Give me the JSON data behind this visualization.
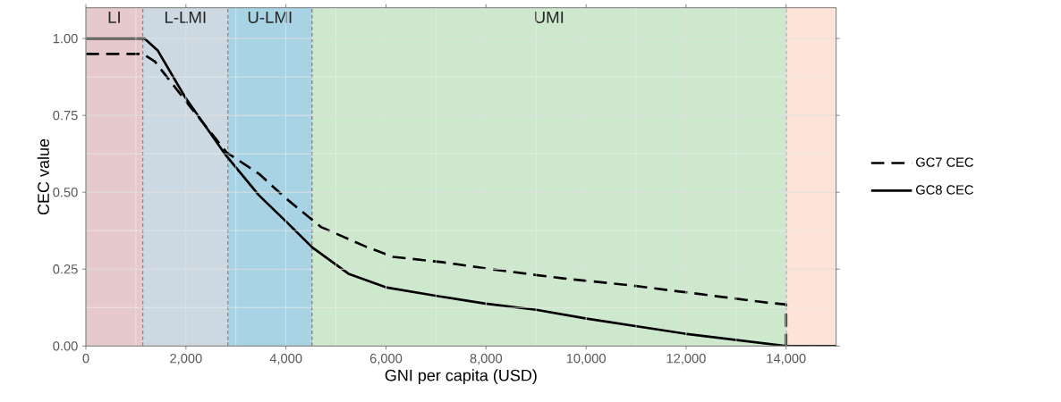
{
  "chart_data": {
    "type": "line",
    "xlabel": "GNI per capita (USD)",
    "ylabel": "CEC value",
    "xlim": [
      0,
      15000
    ],
    "ylim": [
      0,
      1.1
    ],
    "xticks": [
      0,
      {
        "value": 2000,
        "label": "2,000"
      },
      {
        "value": 4000,
        "label": "4,000"
      },
      {
        "value": 6000,
        "label": "6,000"
      },
      {
        "value": 8000,
        "label": "8,000"
      },
      {
        "value": 10000,
        "label": "10,000"
      },
      {
        "value": 12000,
        "label": "12,000"
      },
      {
        "value": 14000,
        "label": "14,000"
      }
    ],
    "yticks": [
      {
        "value": 0,
        "label": "0.00"
      },
      {
        "value": 0.25,
        "label": "0.25"
      },
      {
        "value": 0.5,
        "label": "0.50"
      },
      {
        "value": 0.75,
        "label": "0.75"
      },
      {
        "value": 1,
        "label": "1.00"
      }
    ],
    "grid": true,
    "legend": "right",
    "bands": [
      {
        "axis": "x",
        "from": 0,
        "to": 1140,
        "label": "LI",
        "color": "#e6c9cb"
      },
      {
        "axis": "x",
        "from": 1140,
        "to": 2840,
        "label": "L-LMI",
        "color": "#ccd9e3"
      },
      {
        "axis": "x",
        "from": 2840,
        "to": 4520,
        "label": "U-LMI",
        "color": "#a7d3e5"
      },
      {
        "axis": "x",
        "from": 4520,
        "to": 14000,
        "label": "UMI",
        "color": "#cde8cc"
      },
      {
        "axis": "x",
        "from": 14000,
        "to": 15000,
        "color": "#fde3d8"
      }
    ],
    "ref_lines": [
      {
        "axis": "x",
        "value": 1140,
        "color": "#808080",
        "line_style": "dashed"
      },
      {
        "axis": "x",
        "value": 2840,
        "color": "#808080",
        "line_style": "dashed"
      },
      {
        "axis": "x",
        "value": 4520,
        "color": "#808080",
        "line_style": "dashed"
      },
      {
        "axis": "x",
        "value": 14000,
        "color": "#808080",
        "line_style": "dashed"
      }
    ],
    "series": [
      {
        "name": "GC7 CEC",
        "color": "#000000",
        "line_style": "dashed",
        "x": [
          0,
          1140,
          1380,
          1980,
          2810,
          3460,
          4000,
          4700,
          5600,
          6140,
          7150,
          8100,
          9000,
          9540,
          10960,
          12750,
          13670,
          14000,
          14000,
          15000
        ],
        "values": [
          0.95,
          0.95,
          0.925,
          0.8,
          0.63,
          0.56,
          0.48,
          0.387,
          0.323,
          0.29,
          0.272,
          0.25,
          0.231,
          0.22,
          0.196,
          0.159,
          0.14,
          0.135,
          0,
          0
        ]
      },
      {
        "name": "GC8 CEC",
        "color": "#000000",
        "line_style": "solid",
        "x": [
          0,
          1170,
          1440,
          1980,
          2800,
          3460,
          4000,
          4530,
          5250,
          6020,
          7040,
          7990,
          9000,
          10010,
          11980,
          14000,
          15000
        ],
        "values": [
          1,
          1,
          0.96,
          0.81,
          0.62,
          0.49,
          0.405,
          0.32,
          0.235,
          0.19,
          0.162,
          0.138,
          0.118,
          0.089,
          0.04,
          0,
          0
        ]
      }
    ]
  }
}
